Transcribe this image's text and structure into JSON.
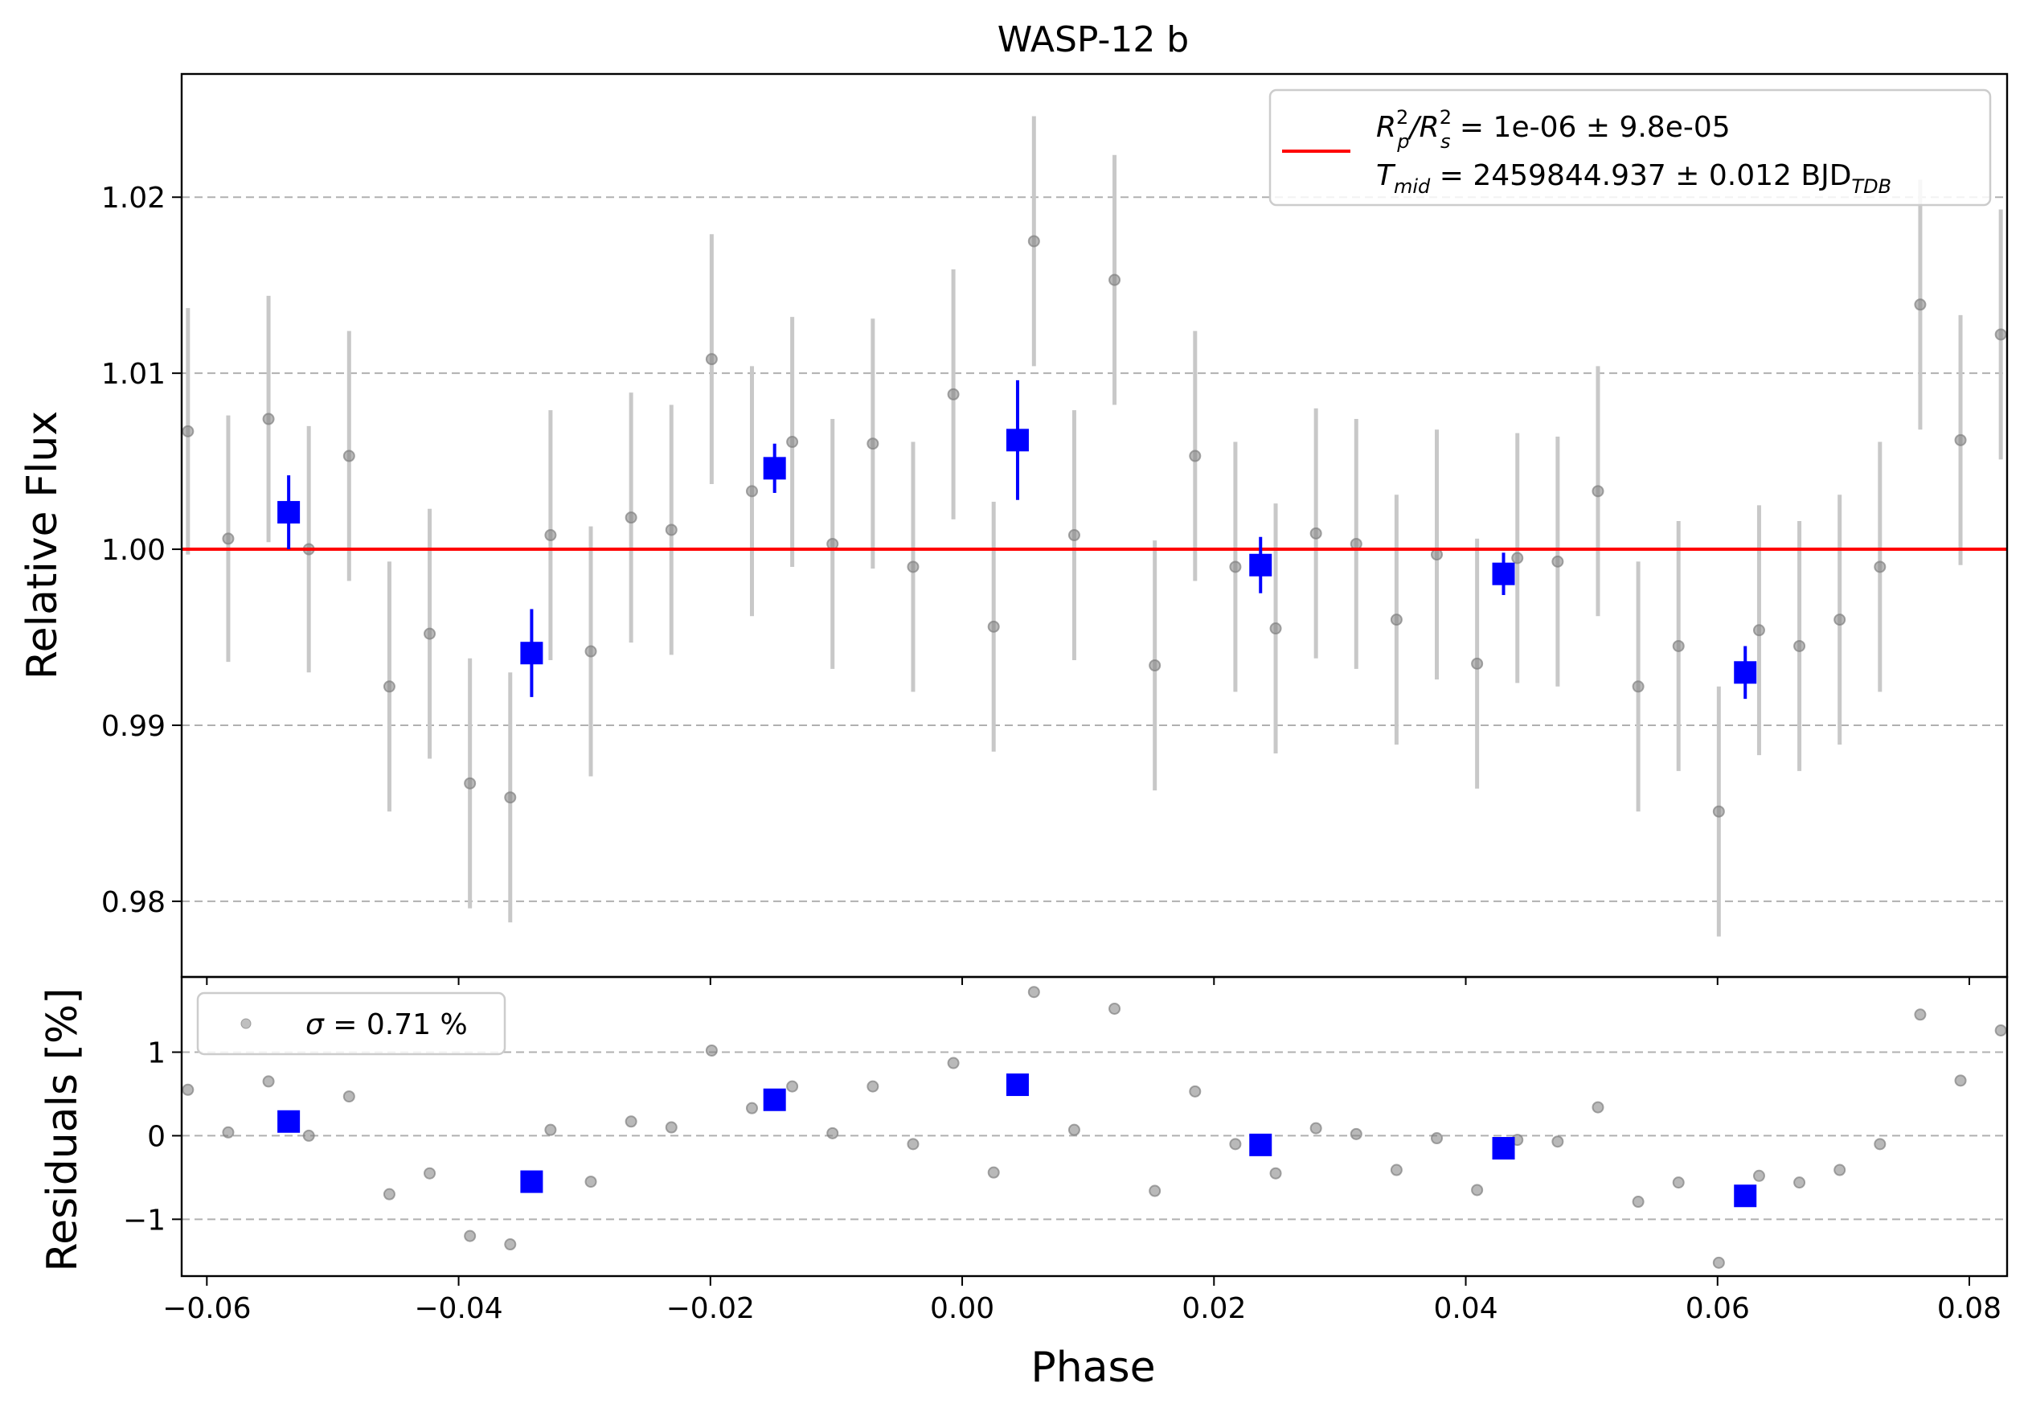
{
  "chart_data": [
    {
      "type": "scatter",
      "panel": "main",
      "title": "WASP-12 b",
      "xlabel": "",
      "ylabel": "Relative Flux",
      "xlim": [
        -0.062,
        0.083
      ],
      "ylim": [
        0.9757,
        1.027
      ],
      "y_ticks": [
        0.98,
        0.99,
        1.0,
        1.01,
        1.02
      ],
      "y_tick_labels": [
        "0.98",
        "0.99",
        "1.00",
        "1.01",
        "1.02"
      ],
      "grid": "horizontal-dashed",
      "legend_position": "top-right",
      "legend": {
        "rp_label": "R_p^2/R_s^2 = 1e-06 ± 9.8e-05",
        "tmid_label": "T_mid = 2459844.937 ± 0.012 BJD_TDB",
        "rp_prefix": "R",
        "rp_sub1": "p",
        "rp_sup1": "2",
        "rp_slash": "/R",
        "rp_sub2": "s",
        "rp_sup2": "2",
        "rp_value": " = 1e-06 ± 9.8e-05",
        "tmid_prefix": "T",
        "tmid_sub": "mid",
        "tmid_value": " = 2459844.937 ± 0.012 BJD",
        "tmid_unit_sub": "TDB"
      },
      "model_line": {
        "y": 1.0,
        "color": "#ff0000"
      },
      "raw_points": {
        "color": "#808080",
        "errorbar_color": "#c8c8c8",
        "x": [
          -0.0615,
          -0.0583,
          -0.0551,
          -0.0519,
          -0.0487,
          -0.0455,
          -0.0423,
          -0.0391,
          -0.0359,
          -0.0327,
          -0.0295,
          -0.0263,
          -0.0231,
          -0.0199,
          -0.0167,
          -0.0135,
          -0.0103,
          -0.0071,
          -0.0039,
          -0.0007,
          0.0025,
          0.0057,
          0.0089,
          0.0121,
          0.0153,
          0.0185,
          0.0217,
          0.0249,
          0.0281,
          0.0313,
          0.0345,
          0.0377,
          0.0409,
          0.0441,
          0.0473,
          0.0505,
          0.0537,
          0.0569,
          0.0601,
          0.0633,
          0.0665,
          0.0697,
          0.0729,
          0.0761,
          0.0793,
          0.0825
        ],
        "y": [
          1.0067,
          1.0006,
          1.0074,
          1.0,
          1.0053,
          0.9922,
          0.9952,
          0.9867,
          0.9859,
          1.0008,
          0.9942,
          1.0018,
          1.0011,
          1.0108,
          1.0033,
          1.0061,
          1.0003,
          1.006,
          0.999,
          1.0088,
          0.9956,
          1.0175,
          1.0008,
          1.0153,
          0.9934,
          1.0053,
          0.999,
          0.9955,
          1.0009,
          1.0003,
          0.996,
          0.9997,
          0.9935,
          0.9995,
          0.9993,
          1.0033,
          0.9922,
          0.9945,
          0.9851,
          0.9954,
          0.9945,
          0.996,
          0.999,
          1.0139,
          1.0062,
          1.0122
        ],
        "yerr": [
          0.007,
          0.007,
          0.007,
          0.007,
          0.0071,
          0.0071,
          0.0071,
          0.0071,
          0.0071,
          0.0071,
          0.0071,
          0.0071,
          0.0071,
          0.0071,
          0.0071,
          0.0071,
          0.0071,
          0.0071,
          0.0071,
          0.0071,
          0.0071,
          0.0071,
          0.0071,
          0.0071,
          0.0071,
          0.0071,
          0.0071,
          0.0071,
          0.0071,
          0.0071,
          0.0071,
          0.0071,
          0.0071,
          0.0071,
          0.0071,
          0.0071,
          0.0071,
          0.0071,
          0.0071,
          0.0071,
          0.0071,
          0.0071,
          0.0071,
          0.0071,
          0.0071,
          0.0071
        ]
      },
      "binned_points": {
        "color": "#0000ff",
        "x": [
          -0.0535,
          -0.0342,
          -0.0149,
          0.0044,
          0.0237,
          0.043,
          0.0622
        ],
        "y": [
          1.0021,
          0.9941,
          1.0046,
          1.0062,
          0.9991,
          0.9986,
          0.993
        ],
        "yerr": [
          0.0021,
          0.0025,
          0.0014,
          0.0034,
          0.0016,
          0.0012,
          0.0015
        ]
      }
    },
    {
      "type": "scatter",
      "panel": "residuals",
      "xlabel": "Phase",
      "ylabel": "Residuals [%]",
      "xlim": [
        -0.062,
        0.083
      ],
      "ylim": [
        -1.68,
        1.9
      ],
      "x_ticks": [
        -0.06,
        -0.04,
        -0.02,
        0.0,
        0.02,
        0.04,
        0.06,
        0.08
      ],
      "x_tick_labels": [
        "−0.06",
        "−0.04",
        "−0.02",
        "0.00",
        "0.02",
        "0.04",
        "0.06",
        "0.08"
      ],
      "y_ticks": [
        -1,
        0,
        1
      ],
      "y_tick_labels": [
        "−1",
        "0",
        "1"
      ],
      "grid": "horizontal-dashed",
      "legend_position": "top-left",
      "legend": {
        "label": "σ = 0.71 %",
        "sigma_symbol": "σ",
        "sigma_value": " = 0.71 %"
      },
      "raw_points": {
        "color": "#808080",
        "x": [
          -0.0615,
          -0.0583,
          -0.0551,
          -0.0519,
          -0.0487,
          -0.0455,
          -0.0423,
          -0.0391,
          -0.0359,
          -0.0327,
          -0.0295,
          -0.0263,
          -0.0231,
          -0.0199,
          -0.0167,
          -0.0135,
          -0.0103,
          -0.0071,
          -0.0039,
          -0.0007,
          0.0025,
          0.0057,
          0.0089,
          0.0121,
          0.0153,
          0.0185,
          0.0217,
          0.0249,
          0.0281,
          0.0313,
          0.0345,
          0.0377,
          0.0409,
          0.0441,
          0.0473,
          0.0505,
          0.0537,
          0.0569,
          0.0601,
          0.0633,
          0.0665,
          0.0697,
          0.0729,
          0.0761,
          0.0793,
          0.0825
        ],
        "y": [
          0.55,
          0.04,
          0.65,
          0.0,
          0.47,
          -0.7,
          -0.45,
          -1.2,
          -1.3,
          0.07,
          -0.55,
          0.17,
          0.1,
          1.02,
          0.33,
          0.59,
          0.03,
          0.59,
          -0.1,
          0.87,
          -0.44,
          1.72,
          0.07,
          1.52,
          -0.66,
          0.53,
          -0.1,
          -0.45,
          0.09,
          0.02,
          -0.41,
          -0.03,
          -0.65,
          -0.05,
          -0.07,
          0.34,
          -0.79,
          -0.56,
          -1.52,
          -0.48,
          -0.56,
          -0.41,
          -0.1,
          1.45,
          0.66,
          1.26
        ]
      },
      "binned_points": {
        "color": "#0000ff",
        "x": [
          -0.0535,
          -0.0342,
          -0.0149,
          0.0044,
          0.0237,
          0.043,
          0.0622
        ],
        "y": [
          0.17,
          -0.55,
          0.43,
          0.61,
          -0.11,
          -0.15,
          -0.72
        ]
      }
    }
  ]
}
